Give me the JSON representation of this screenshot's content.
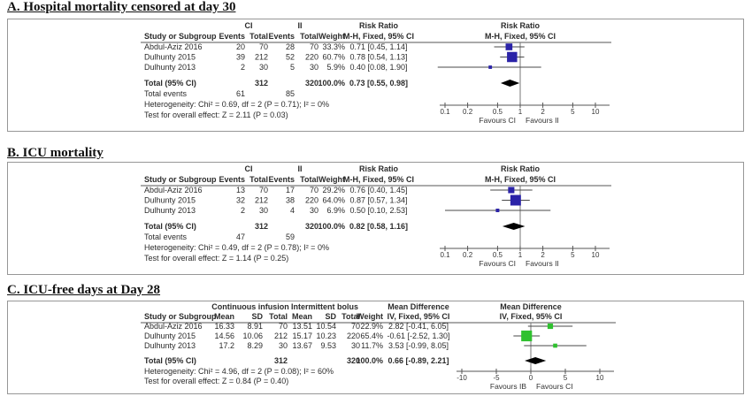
{
  "chart_data": [
    {
      "type": "forest",
      "panel_label": "A",
      "title": "A. Hospital mortality censored at day 30",
      "effect_measure": "Risk Ratio",
      "effect_method": "M-H, Fixed, 95% CI",
      "scale": "log",
      "x_ticks": [
        0.1,
        0.2,
        0.5,
        1,
        2,
        5,
        10
      ],
      "favours": [
        "Favours CI",
        "Favours II"
      ],
      "marker_color": "#2b23a8",
      "diamond_color": "#000000",
      "columns": {
        "study": "Study or Subgroup",
        "group1": {
          "label": "CI",
          "cols": [
            "Events",
            "Total"
          ]
        },
        "group2": {
          "label": "II",
          "cols": [
            "Events",
            "Total"
          ]
        },
        "weight": "Weight"
      },
      "studies": [
        {
          "study": "Abdul-Aziz 2016",
          "g1": [
            "20",
            "70"
          ],
          "g2": [
            "28",
            "70"
          ],
          "weight": "33.3%",
          "weight_pct": 33.3,
          "ci_label": "0.71 [0.45, 1.14]",
          "est": 0.71,
          "lo": 0.45,
          "hi": 1.14
        },
        {
          "study": "Dulhunty 2015",
          "g1": [
            "39",
            "212"
          ],
          "g2": [
            "52",
            "220"
          ],
          "weight": "60.7%",
          "weight_pct": 60.7,
          "ci_label": "0.78 [0.54, 1.13]",
          "est": 0.78,
          "lo": 0.54,
          "hi": 1.13
        },
        {
          "study": "Dulhunty 2013",
          "g1": [
            "2",
            "30"
          ],
          "g2": [
            "5",
            "30"
          ],
          "weight": "5.9%",
          "weight_pct": 5.9,
          "ci_label": "0.40 [0.08, 1.90]",
          "est": 0.4,
          "lo": 0.08,
          "hi": 1.9
        }
      ],
      "total": {
        "label": "Total (95% CI)",
        "g1_total": "312",
        "g2_total": "320",
        "weight": "100.0%",
        "ci_label": "0.73 [0.55, 0.98]",
        "est": 0.73,
        "lo": 0.55,
        "hi": 0.98
      },
      "total_events": {
        "label": "Total events",
        "g1": "61",
        "g2": "85"
      },
      "heterogeneity": "Heterogeneity: Chi² = 0.69, df = 2 (P = 0.71); I² = 0%",
      "overall_test": "Test for overall effect: Z = 2.11 (P = 0.03)"
    },
    {
      "type": "forest",
      "panel_label": "B",
      "title": "B. ICU mortality",
      "effect_measure": "Risk Ratio",
      "effect_method": "M-H, Fixed, 95% CI",
      "scale": "log",
      "x_ticks": [
        0.1,
        0.2,
        0.5,
        1,
        2,
        5,
        10
      ],
      "favours": [
        "Favours CI",
        "Favours II"
      ],
      "marker_color": "#2b23a8",
      "diamond_color": "#000000",
      "columns": {
        "study": "Study or Subgroup",
        "group1": {
          "label": "CI",
          "cols": [
            "Events",
            "Total"
          ]
        },
        "group2": {
          "label": "II",
          "cols": [
            "Events",
            "Total"
          ]
        },
        "weight": "Weight"
      },
      "studies": [
        {
          "study": "Abdul-Aziz 2016",
          "g1": [
            "13",
            "70"
          ],
          "g2": [
            "17",
            "70"
          ],
          "weight": "29.2%",
          "weight_pct": 29.2,
          "ci_label": "0.76 [0.40, 1.45]",
          "est": 0.76,
          "lo": 0.4,
          "hi": 1.45
        },
        {
          "study": "Dulhunty 2015",
          "g1": [
            "32",
            "212"
          ],
          "g2": [
            "38",
            "220"
          ],
          "weight": "64.0%",
          "weight_pct": 64.0,
          "ci_label": "0.87 [0.57, 1.34]",
          "est": 0.87,
          "lo": 0.57,
          "hi": 1.34
        },
        {
          "study": "Dulhunty 2013",
          "g1": [
            "2",
            "30"
          ],
          "g2": [
            "4",
            "30"
          ],
          "weight": "6.9%",
          "weight_pct": 6.9,
          "ci_label": "0.50 [0.10, 2.53]",
          "est": 0.5,
          "lo": 0.1,
          "hi": 2.53
        }
      ],
      "total": {
        "label": "Total (95% CI)",
        "g1_total": "312",
        "g2_total": "320",
        "weight": "100.0%",
        "ci_label": "0.82 [0.58, 1.16]",
        "est": 0.82,
        "lo": 0.58,
        "hi": 1.16
      },
      "total_events": {
        "label": "Total events",
        "g1": "47",
        "g2": "59"
      },
      "heterogeneity": "Heterogeneity: Chi² = 0.49, df = 2 (P = 0.78); I² = 0%",
      "overall_test": "Test for overall effect: Z = 1.14 (P = 0.25)"
    },
    {
      "type": "forest",
      "panel_label": "C",
      "title": "C. ICU-free days at Day 28",
      "effect_measure": "Mean Difference",
      "effect_method": "IV, Fixed, 95% CI",
      "scale": "linear",
      "x_ticks": [
        -10,
        -5,
        0,
        5,
        10
      ],
      "favours": [
        "Favours IB",
        "Favours CI"
      ],
      "marker_color": "#2fc12f",
      "diamond_color": "#000000",
      "columns": {
        "study": "Study or Subgroup",
        "group1": {
          "label": "Continuous infusion",
          "cols": [
            "Mean",
            "SD",
            "Total"
          ]
        },
        "group2": {
          "label": "Intermittent bolus",
          "cols": [
            "Mean",
            "SD",
            "Total"
          ]
        },
        "weight": "Weight"
      },
      "studies": [
        {
          "study": "Abdul-Aziz 2016",
          "g1": [
            "16.33",
            "8.91",
            "70"
          ],
          "g2": [
            "13.51",
            "10.54",
            "70"
          ],
          "weight": "22.9%",
          "weight_pct": 22.9,
          "ci_label": "2.82 [-0.41, 6.05]",
          "est": 2.82,
          "lo": -0.41,
          "hi": 6.05
        },
        {
          "study": "Dulhunty 2015",
          "g1": [
            "14.56",
            "10.06",
            "212"
          ],
          "g2": [
            "15.17",
            "10.23",
            "220"
          ],
          "weight": "65.4%",
          "weight_pct": 65.4,
          "ci_label": "-0.61 [-2.52, 1.30]",
          "est": -0.61,
          "lo": -2.52,
          "hi": 1.3
        },
        {
          "study": "Dulhunty 2013",
          "g1": [
            "17.2",
            "8.29",
            "30"
          ],
          "g2": [
            "13.67",
            "9.53",
            "30"
          ],
          "weight": "11.7%",
          "weight_pct": 11.7,
          "ci_label": "3.53 [-0.99, 8.05]",
          "est": 3.53,
          "lo": -0.99,
          "hi": 8.05
        }
      ],
      "total": {
        "label": "Total (95% CI)",
        "g1_total": "312",
        "g2_total": "320",
        "weight": "100.0%",
        "ci_label": "0.66 [-0.89, 2.21]",
        "est": 0.66,
        "lo": -0.89,
        "hi": 2.21
      },
      "heterogeneity": "Heterogeneity: Chi² = 4.96, df = 2 (P = 0.08); I² = 60%",
      "overall_test": "Test for overall effect: Z = 0.84 (P = 0.40)"
    }
  ]
}
